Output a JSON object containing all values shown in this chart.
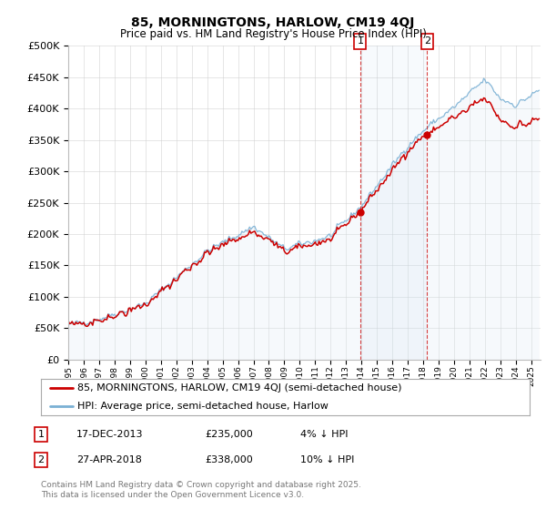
{
  "title": "85, MORNINGTONS, HARLOW, CM19 4QJ",
  "subtitle": "Price paid vs. HM Land Registry's House Price Index (HPI)",
  "ylim": [
    0,
    500000
  ],
  "yticks": [
    0,
    50000,
    100000,
    150000,
    200000,
    250000,
    300000,
    350000,
    400000,
    450000,
    500000
  ],
  "sale1_year": 2013,
  "sale1_month": 12,
  "sale1_price": 235000,
  "sale2_year": 2018,
  "sale2_month": 4,
  "sale2_price": 338000,
  "line_color_paid": "#cc0000",
  "line_color_hpi": "#7ab0d4",
  "fill_color_hpi": "#deeaf4",
  "vline_color": "#cc0000",
  "legend_label_paid": "85, MORNINGTONS, HARLOW, CM19 4QJ (semi-detached house)",
  "legend_label_hpi": "HPI: Average price, semi-detached house, Harlow",
  "footnote": "Contains HM Land Registry data © Crown copyright and database right 2025.\nThis data is licensed under the Open Government Licence v3.0.",
  "bg_color": "#ffffff",
  "grid_color": "#cccccc",
  "title_fontsize": 10,
  "subtitle_fontsize": 8.5,
  "axis_fontsize": 8,
  "legend_fontsize": 8,
  "annotation_fontsize": 8,
  "footnote_fontsize": 6.5
}
